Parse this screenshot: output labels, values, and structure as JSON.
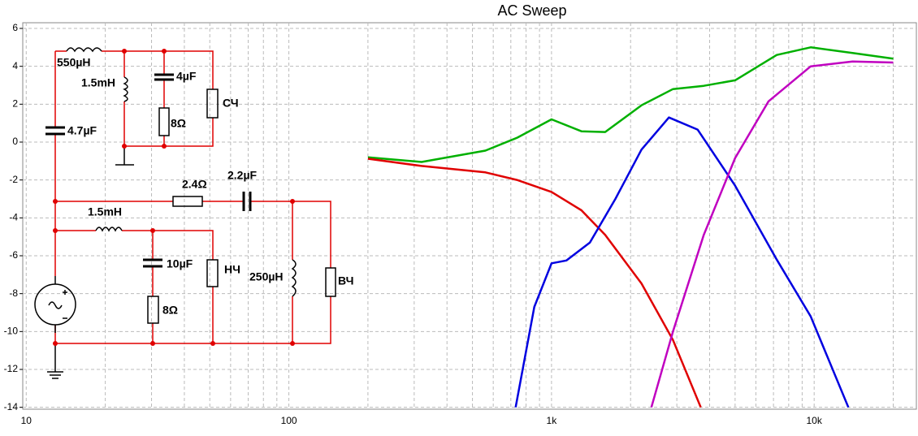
{
  "chart_data": {
    "type": "line",
    "title": "AC Sweep",
    "log_x": true,
    "grid": true,
    "xlim": [
      9.7,
      24500
    ],
    "ylim": [
      -14.1,
      6.3
    ],
    "xticks": [
      10,
      100,
      {
        "value": 1000,
        "label": "1k"
      },
      {
        "value": 10000,
        "label": "10k"
      }
    ],
    "xgrid_minor": [
      20,
      30,
      40,
      50,
      60,
      70,
      80,
      90,
      200,
      300,
      400,
      500,
      600,
      700,
      800,
      900,
      2000,
      3000,
      4000,
      5000,
      6000,
      7000,
      8000,
      9000,
      20000
    ],
    "yticks": [
      -14,
      -12,
      -10,
      -8,
      -6,
      -4,
      -2,
      0,
      2,
      4,
      6
    ],
    "series": [
      {
        "color": "#00b000",
        "x": [
          200,
          320,
          560,
          740,
          1000,
          1300,
          1600,
          2200,
          2900,
          3800,
          5000,
          7200,
          9700,
          14000,
          20000
        ],
        "values": [
          -0.8,
          -1.05,
          -0.45,
          0.23,
          1.2,
          0.57,
          0.53,
          1.94,
          2.8,
          2.97,
          3.26,
          4.6,
          5.0,
          4.7,
          4.4
        ]
      },
      {
        "color": "#e00000",
        "x": [
          200,
          320,
          560,
          740,
          1000,
          1300,
          1600,
          2200,
          2900,
          3700
        ],
        "values": [
          -0.88,
          -1.26,
          -1.6,
          -2.0,
          -2.63,
          -3.6,
          -4.9,
          -7.46,
          -10.45,
          -14
        ]
      },
      {
        "color": "#0000e0",
        "x": [
          730,
          860,
          1000,
          1140,
          1400,
          1750,
          2200,
          2800,
          3600,
          5000,
          7200,
          9700,
          13500
        ],
        "values": [
          -14,
          -8.7,
          -6.4,
          -6.25,
          -5.3,
          -3.0,
          -0.4,
          1.3,
          0.66,
          -2.3,
          -6.2,
          -9.2,
          -14
        ]
      },
      {
        "color": "#c000c0",
        "x": [
          2400,
          2900,
          3800,
          5000,
          6700,
          9700,
          14000,
          20000
        ],
        "values": [
          -14,
          -10,
          -4.9,
          -0.84,
          2.15,
          4.0,
          4.25,
          4.2
        ]
      }
    ]
  },
  "circuit": {
    "labels": [
      "550µH",
      "1.5mH",
      "4µF",
      "8Ω",
      "СЧ",
      "4.7µF",
      "2.4Ω",
      "2.2µF",
      "1.5mH",
      "10µF",
      "НЧ",
      "250µH",
      "ВЧ",
      "8Ω"
    ]
  }
}
